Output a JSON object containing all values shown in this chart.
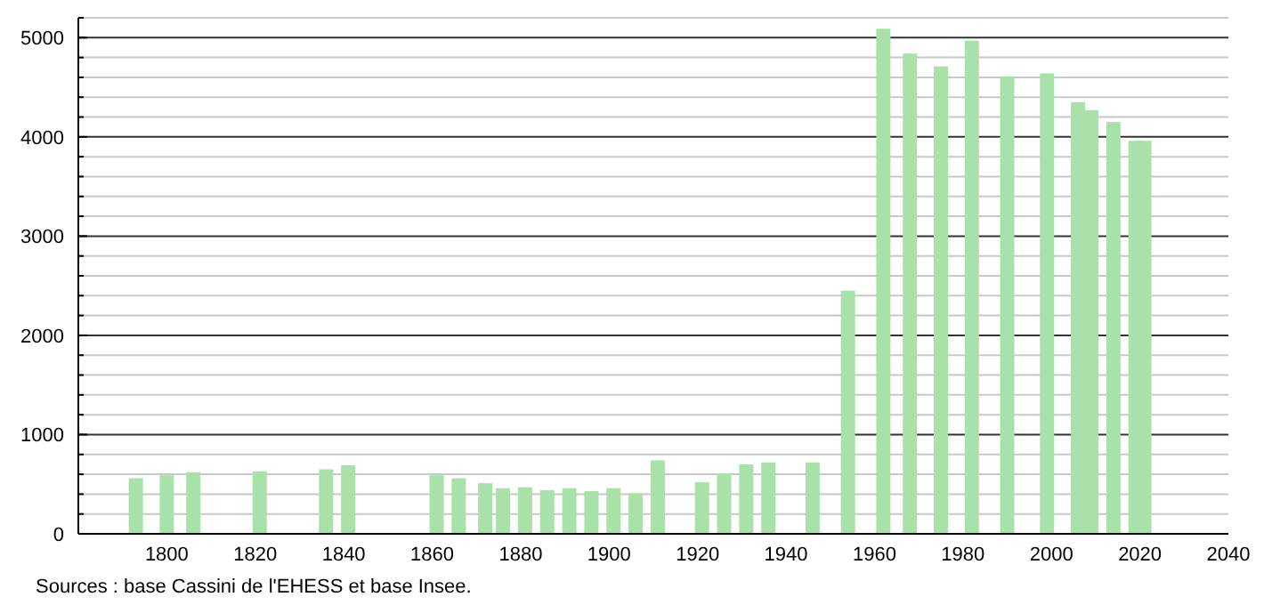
{
  "chart_data": {
    "type": "bar",
    "x": [
      1793,
      1800,
      1806,
      1821,
      1836,
      1841,
      1861,
      1866,
      1872,
      1876,
      1881,
      1886,
      1891,
      1896,
      1901,
      1906,
      1911,
      1921,
      1926,
      1931,
      1936,
      1946,
      1954,
      1962,
      1968,
      1975,
      1982,
      1990,
      1999,
      2006,
      2009,
      2014,
      2019,
      2021
    ],
    "values": [
      560,
      590,
      620,
      630,
      650,
      690,
      590,
      560,
      510,
      460,
      470,
      440,
      460,
      430,
      460,
      410,
      740,
      520,
      610,
      700,
      720,
      720,
      2450,
      5090,
      4840,
      4710,
      4970,
      4610,
      4640,
      4350,
      4270,
      4150,
      3960,
      3960
    ],
    "color": "#a8e2a8",
    "xlim": [
      1780,
      2040
    ],
    "xticks": [
      1800,
      1820,
      1840,
      1860,
      1880,
      1900,
      1920,
      1940,
      1960,
      1980,
      2000,
      2020,
      2040
    ],
    "ylim": [
      0,
      5200
    ],
    "yticks": [
      0,
      {
        "value": 200,
        "label": null
      },
      {
        "value": 400,
        "label": null
      },
      {
        "value": 600,
        "label": null
      },
      {
        "value": 800,
        "label": null
      },
      1000,
      {
        "value": 1200,
        "label": null
      },
      {
        "value": 1400,
        "label": null
      },
      {
        "value": 1600,
        "label": null
      },
      {
        "value": 1800,
        "label": null
      },
      2000,
      {
        "value": 2200,
        "label": null
      },
      {
        "value": 2400,
        "label": null
      },
      {
        "value": 2600,
        "label": null
      },
      {
        "value": 2800,
        "label": null
      },
      3000,
      {
        "value": 3200,
        "label": null
      },
      {
        "value": 3400,
        "label": null
      },
      {
        "value": 3600,
        "label": null
      },
      {
        "value": 3800,
        "label": null
      },
      4000,
      {
        "value": 4200,
        "label": null
      },
      {
        "value": 4400,
        "label": null
      },
      {
        "value": 4600,
        "label": null
      },
      {
        "value": 4800,
        "label": null
      },
      5000,
      {
        "value": 5200,
        "label": null
      }
    ],
    "grid": "y",
    "annotations": [
      "Sources : base Cassini de l'EHESS et base Insee."
    ]
  }
}
